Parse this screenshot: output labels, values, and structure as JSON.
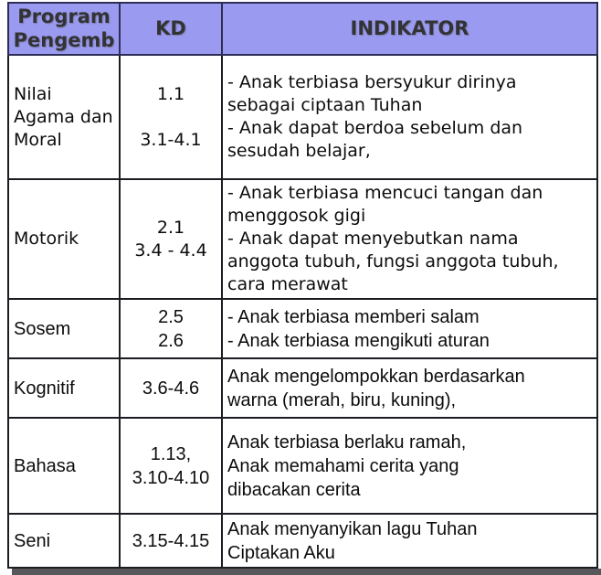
{
  "document": {
    "title": "Program Pengembangan / KD / Indikator table",
    "colors": {
      "header_bg": "#9a9af0",
      "header_text": "#333336",
      "body_text": "#0c0c0c",
      "border": "#1c1c22",
      "header_border": "#2d2d55",
      "shadow_bar": "#57575c",
      "page_bg": "#ffffff"
    },
    "header": {
      "col1": "Program\nPengemb",
      "col2": "KD",
      "col3": "INDIKATOR"
    },
    "rows": [
      {
        "program": "Nilai\nAgama dan\nMoral",
        "kd": "1.1\n\n3.1-4.1",
        "indikator": "- Anak terbiasa bersyukur dirinya\nsebagai ciptaan Tuhan\n- Anak dapat berdoa sebelum dan\nsesudah belajar,"
      },
      {
        "program": "Motorik",
        "kd": "2.1\n3.4 - 4.4",
        "indikator": "- Anak terbiasa mencuci tangan dan\nmenggosok gigi\n- Anak dapat menyebutkan nama\nanggota tubuh, fungsi anggota tubuh,\ncara merawat"
      },
      {
        "program": "Sosem",
        "kd": "2.5\n2.6",
        "indikator": "- Anak terbiasa memberi salam\n- Anak terbiasa mengikuti aturan"
      },
      {
        "program": "Kognitif",
        "kd": "3.6-4.6",
        "indikator": "Anak mengelompokkan berdasarkan\nwarna (merah, biru, kuning),"
      },
      {
        "program": "Bahasa",
        "kd": "1.13,\n3.10-4.10",
        "indikator": "Anak terbiasa berlaku ramah,\nAnak memahami cerita yang\ndibacakan cerita"
      },
      {
        "program": "Seni",
        "kd": "3.15-4.15",
        "indikator": "Anak menyanyikan lagu Tuhan\nCiptakan Aku"
      }
    ]
  }
}
